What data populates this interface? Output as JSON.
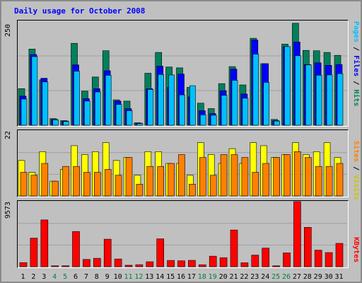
{
  "title": "Daily usage for October 2008",
  "panels": {
    "hits": {
      "max_label": "250",
      "legend": {
        "pages": "Pages",
        "files": "Files",
        "hits": "Hits",
        "sep": " / "
      }
    },
    "visits": {
      "max_label": "22",
      "legend": {
        "sites": "Sites",
        "visits": "Visits",
        "sep": " / "
      }
    },
    "kbytes": {
      "max_label": "9573",
      "legend": {
        "kbytes": "KBytes"
      }
    }
  },
  "colors": {
    "hits": "#00805c",
    "files": "#0000ff",
    "pages": "#00c0ff",
    "visits": "#ffff00",
    "sites": "#ff8000",
    "kbytes": "#ff0000",
    "weekday_label": "#000000",
    "weekend_label": "#008040",
    "background": "#c0c0c0"
  },
  "chart_data": {
    "type": "bar",
    "categories": [
      "1",
      "2",
      "3",
      "4",
      "5",
      "6",
      "7",
      "8",
      "9",
      "10",
      "11",
      "12",
      "13",
      "14",
      "15",
      "16",
      "17",
      "18",
      "19",
      "20",
      "21",
      "22",
      "23",
      "24",
      "25",
      "26",
      "27",
      "28",
      "29",
      "30",
      "31"
    ],
    "weekend_days": [
      "4",
      "5",
      "11",
      "12",
      "18",
      "19",
      "25",
      "26"
    ],
    "charts": [
      {
        "name": "hits-files-pages",
        "ylim": [
          0,
          250
        ],
        "series": [
          {
            "name": "Hits",
            "values": [
              88,
              183,
              109,
              16,
              11,
              197,
              82,
              116,
              179,
              61,
              58,
              6,
              125,
              175,
              140,
              138,
              91,
              53,
              40,
              100,
              141,
              97,
              209,
              148,
              14,
              195,
              245,
              180,
              179,
              175,
              168
            ]
          },
          {
            "name": "Files",
            "values": [
              70,
              170,
              113,
              14,
              10,
              145,
              64,
              88,
              131,
              58,
              40,
              5,
              88,
              142,
              91,
              123,
              68,
              35,
              28,
              83,
              135,
              75,
              205,
              148,
              11,
              189,
              200,
              146,
              150,
              144,
              146
            ]
          },
          {
            "name": "Pages",
            "values": [
              63,
              165,
              104,
              13,
              9,
              130,
              58,
              80,
              120,
              50,
              35,
              4,
              86,
              122,
              121,
              73,
              95,
              25,
              24,
              72,
              108,
              65,
              171,
              103,
              10,
              189,
              167,
              145,
              120,
              121,
              124
            ]
          }
        ]
      },
      {
        "name": "visits-sites",
        "ylim": [
          0,
          22
        ],
        "series": [
          {
            "name": "Visits",
            "values": [
              12,
              8,
              15,
              5,
              9,
              17,
              14,
              15,
              18,
              12,
              13,
              7,
              15,
              15,
              11,
              11,
              7,
              18,
              14,
              11,
              16,
              11,
              18,
              17,
              13,
              14,
              18,
              14,
              15,
              18,
              13
            ]
          },
          {
            "name": "Sites",
            "values": [
              8,
              7,
              11,
              5,
              10,
              10,
              8,
              8,
              9,
              7,
              13,
              4,
              10,
              10,
              11,
              14,
              4,
              13,
              7,
              14,
              14,
              13,
              8,
              11,
              13,
              14,
              15,
              13,
              10,
              10,
              11
            ]
          }
        ]
      },
      {
        "name": "kbytes",
        "ylim": [
          0,
          9573
        ],
        "series": [
          {
            "name": "KBytes",
            "values": [
              603,
              4202,
              6883,
              134,
              134,
              5179,
              1067,
              1236,
              4050,
              1135,
              222,
              301,
              730,
              4100,
              928,
              877,
              932,
              292,
              1550,
              1328,
              5400,
              580,
              1707,
              2740,
              134,
              2040,
              9573,
              5794,
              2434,
              2084,
              3437
            ]
          }
        ]
      }
    ]
  }
}
